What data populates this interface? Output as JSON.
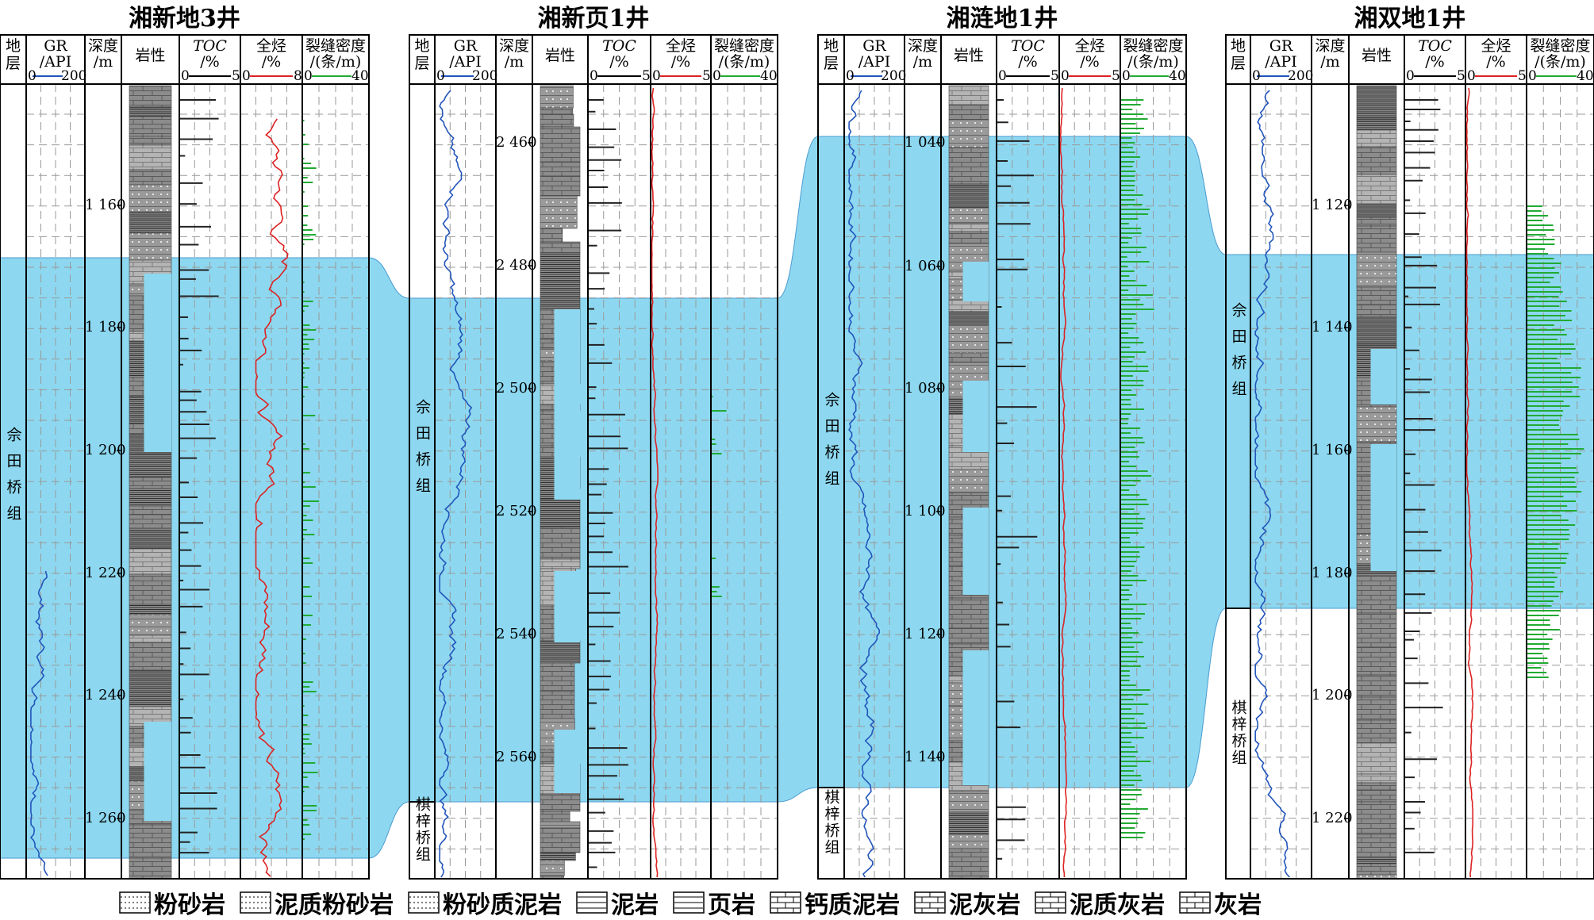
{
  "wells": [
    {
      "id": "w1",
      "title": "湘新地3井",
      "headers": {
        "strat": [
          "地",
          "层"
        ],
        "gr": [
          "GR",
          "/API"
        ],
        "gr_scale": [
          "0",
          "200"
        ],
        "depth": [
          "深度",
          "/m"
        ],
        "litho": "岩性",
        "toc": [
          "TOC",
          "/%"
        ],
        "toc_scale": [
          "0",
          "5"
        ],
        "hc": [
          "全烃",
          "/%"
        ],
        "hc_scale": [
          "0",
          "8"
        ],
        "frac": [
          "裂缝密度",
          "/(条/m)"
        ],
        "frac_scale": [
          "0",
          "40"
        ]
      },
      "depth_labels": [
        "1 160",
        "1 180",
        "1 200",
        "1 220",
        "1 240",
        "1 260"
      ],
      "formations": [
        {
          "name": "佘田桥组"
        }
      ]
    },
    {
      "id": "w2",
      "title": "湘新页1井",
      "headers": {
        "strat": [
          "地",
          "层"
        ],
        "gr": [
          "GR",
          "/API"
        ],
        "gr_scale": [
          "0",
          "200"
        ],
        "depth": [
          "深度",
          "/m"
        ],
        "litho": "岩性",
        "toc": [
          "TOC",
          "/%"
        ],
        "toc_scale": [
          "0",
          "5"
        ],
        "hc": [
          "全烃",
          "/%"
        ],
        "hc_scale": [
          "0",
          "5"
        ],
        "frac": [
          "裂缝密度",
          "/(条/m)"
        ],
        "frac_scale": [
          "0",
          "40"
        ]
      },
      "depth_labels": [
        "2 460",
        "2 480",
        "2 500",
        "2 520",
        "2 540",
        "2 560"
      ],
      "formations": [
        {
          "name": "佘田桥组"
        },
        {
          "name": "棋梓桥组"
        }
      ]
    },
    {
      "id": "w3",
      "title": "湘涟地1井",
      "headers": {
        "strat": [
          "地",
          "层"
        ],
        "gr": [
          "GR",
          "/API"
        ],
        "gr_scale": [
          "0",
          "200"
        ],
        "depth": [
          "深度",
          "/m"
        ],
        "litho": "岩性",
        "toc": [
          "TOC",
          "/%"
        ],
        "toc_scale": [
          "0",
          "5"
        ],
        "hc": [
          "全烃",
          "/%"
        ],
        "hc_scale": [
          "0",
          "5"
        ],
        "frac": [
          "裂缝密度",
          "/(条/m)"
        ],
        "frac_scale": [
          "0",
          "40"
        ]
      },
      "depth_labels": [
        "1 040",
        "1 060",
        "1 080",
        "1 100",
        "1 120",
        "1 140"
      ],
      "formations": [
        {
          "name": "佘田桥组"
        },
        {
          "name": "棋梓桥组"
        }
      ]
    },
    {
      "id": "w4",
      "title": "湘双地1井",
      "headers": {
        "strat": [
          "地",
          "层"
        ],
        "gr": [
          "GR",
          "/API"
        ],
        "gr_scale": [
          "0",
          "200"
        ],
        "depth": [
          "深度",
          "/m"
        ],
        "litho": "岩性",
        "toc": [
          "TOC",
          "/%"
        ],
        "toc_scale": [
          "0",
          "5"
        ],
        "hc": [
          "全烃",
          "/%"
        ],
        "hc_scale": [
          "0",
          "5"
        ],
        "frac": [
          "裂缝密度",
          "/(条/m)"
        ],
        "frac_scale": [
          "0",
          "40"
        ]
      },
      "depth_labels": [
        "1 120",
        "1 140",
        "1 160",
        "1 180",
        "1 200",
        "1 220"
      ],
      "formations": [
        {
          "name": "佘田桥组"
        },
        {
          "name": "棋梓桥组"
        }
      ]
    }
  ],
  "legend": [
    {
      "label": "粉砂岩",
      "pattern": "siltstone"
    },
    {
      "label": "泥质粉砂岩",
      "pattern": "argillaceous-siltstone"
    },
    {
      "label": "粉砂质泥岩",
      "pattern": "silty-mudstone"
    },
    {
      "label": "泥岩",
      "pattern": "mudstone"
    },
    {
      "label": "页岩",
      "pattern": "shale"
    },
    {
      "label": "钙质泥岩",
      "pattern": "calcareous-mudstone"
    },
    {
      "label": "泥灰岩",
      "pattern": "marl"
    },
    {
      "label": "泥质灰岩",
      "pattern": "argillaceous-limestone"
    },
    {
      "label": "灰岩",
      "pattern": "limestone"
    }
  ],
  "colors": {
    "highlight": "#8dd8f0",
    "gr_curve": "#2255bb",
    "hc_curve": "#dd2222",
    "frac_bars": "#22aa33",
    "litho_fill": "#8c8c8c",
    "grid_dash": "#999999"
  }
}
